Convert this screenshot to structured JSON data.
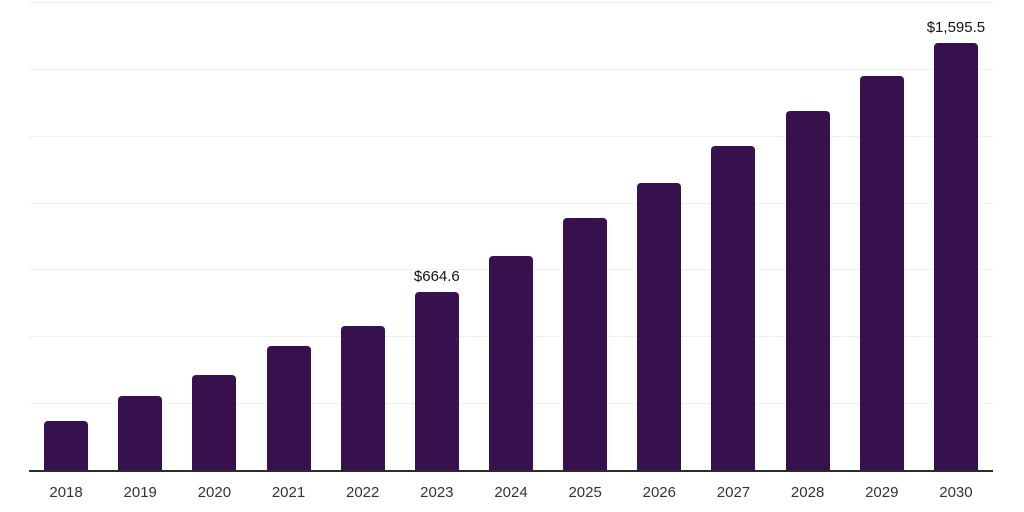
{
  "chart_data": {
    "type": "bar",
    "title": "",
    "xlabel": "",
    "ylabel": "",
    "categories": [
      "2018",
      "2019",
      "2020",
      "2021",
      "2022",
      "2023",
      "2024",
      "2025",
      "2026",
      "2027",
      "2028",
      "2029",
      "2030"
    ],
    "values": [
      185,
      278,
      354,
      462,
      540,
      664.6,
      801,
      944,
      1074,
      1212,
      1343,
      1474,
      1595.5
    ],
    "data_labels": [
      {
        "index": 5,
        "text": "$664.6"
      },
      {
        "index": 12,
        "text": "$1,595.5"
      }
    ],
    "ylim": [
      0,
      1750
    ],
    "gridline_step": 250,
    "grid": true,
    "legend": "none",
    "y_axis_tick_labels": "none",
    "colors": {
      "bar": "#36114e",
      "gridline": "#f0f0f0",
      "axis_line": "#2b2b2b",
      "tick_label": "#333333",
      "data_label": "#121212",
      "background": "#ffffff"
    }
  }
}
